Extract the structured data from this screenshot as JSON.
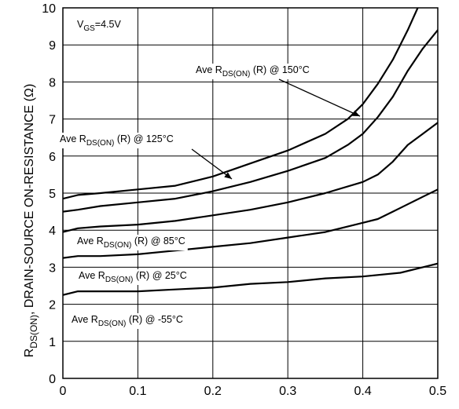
{
  "chart_data": {
    "type": "line",
    "ylabel_main": "R",
    "ylabel_sub": "DS(ON)",
    "ylabel_rest": ", DRAIN-SOURCE ON-RESISTANCE (Ω)",
    "condition_main": "V",
    "condition_sub": "GS",
    "condition_rest": "=4.5V",
    "xlim": [
      0,
      0.5
    ],
    "ylim": [
      0,
      10
    ],
    "x_ticks": [
      "0",
      "0.1",
      "0.2",
      "0.3",
      "0.4",
      "0.5"
    ],
    "y_ticks": [
      "0",
      "1",
      "2",
      "3",
      "4",
      "5",
      "6",
      "7",
      "8",
      "9",
      "10"
    ],
    "grid": true,
    "series": [
      {
        "name": "Ave RDS(ON) (R) @ 150°C",
        "label_pre": "Ave R",
        "label_sub": "DS(ON)",
        "label_post": " (R) @ 150°C",
        "x": [
          0,
          0.02,
          0.05,
          0.1,
          0.15,
          0.2,
          0.25,
          0.3,
          0.35,
          0.38,
          0.4,
          0.42,
          0.44,
          0.46,
          0.48,
          0.5
        ],
        "y": [
          4.85,
          4.95,
          5.0,
          5.1,
          5.2,
          5.45,
          5.8,
          6.15,
          6.6,
          7.0,
          7.4,
          7.95,
          8.6,
          9.4,
          10.3,
          11.2
        ]
      },
      {
        "name": "Ave RDS(ON) (R) @ 125°C",
        "label_pre": "Ave R",
        "label_sub": "DS(ON)",
        "label_post": " (R) @ 125°C",
        "x": [
          0,
          0.02,
          0.05,
          0.1,
          0.15,
          0.2,
          0.25,
          0.3,
          0.35,
          0.38,
          0.4,
          0.42,
          0.44,
          0.46,
          0.48,
          0.5
        ],
        "y": [
          4.5,
          4.55,
          4.65,
          4.75,
          4.85,
          5.05,
          5.3,
          5.6,
          5.95,
          6.3,
          6.6,
          7.05,
          7.6,
          8.3,
          8.9,
          9.4
        ]
      },
      {
        "name": "Ave RDS(ON) (R) @ 85°C",
        "label_pre": "Ave R",
        "label_sub": "DS(ON)",
        "label_post": " (R) @ 85°C",
        "x": [
          0,
          0.02,
          0.05,
          0.1,
          0.15,
          0.2,
          0.25,
          0.3,
          0.35,
          0.4,
          0.42,
          0.44,
          0.46,
          0.48,
          0.5
        ],
        "y": [
          3.95,
          4.05,
          4.1,
          4.15,
          4.25,
          4.4,
          4.55,
          4.75,
          5.0,
          5.3,
          5.5,
          5.85,
          6.3,
          6.6,
          6.9
        ]
      },
      {
        "name": "Ave RDS(ON) (R) @ 25°C",
        "label_pre": "Ave R",
        "label_sub": "DS(ON)",
        "label_post": " (R) @ 25°C",
        "x": [
          0,
          0.02,
          0.05,
          0.1,
          0.15,
          0.2,
          0.25,
          0.3,
          0.35,
          0.4,
          0.42,
          0.44,
          0.46,
          0.48,
          0.5
        ],
        "y": [
          3.25,
          3.3,
          3.3,
          3.35,
          3.45,
          3.55,
          3.65,
          3.8,
          3.95,
          4.2,
          4.3,
          4.5,
          4.7,
          4.9,
          5.1
        ]
      },
      {
        "name": "Ave RDS(ON) (R) @ -55°C",
        "label_pre": "Ave R",
        "label_sub": "DS(ON)",
        "label_post": " (R) @ -55°C",
        "x": [
          0,
          0.02,
          0.05,
          0.1,
          0.15,
          0.2,
          0.25,
          0.3,
          0.35,
          0.4,
          0.45,
          0.48,
          0.5
        ],
        "y": [
          2.25,
          2.35,
          2.35,
          2.35,
          2.4,
          2.45,
          2.55,
          2.6,
          2.7,
          2.75,
          2.85,
          3.0,
          3.1
        ]
      }
    ]
  }
}
